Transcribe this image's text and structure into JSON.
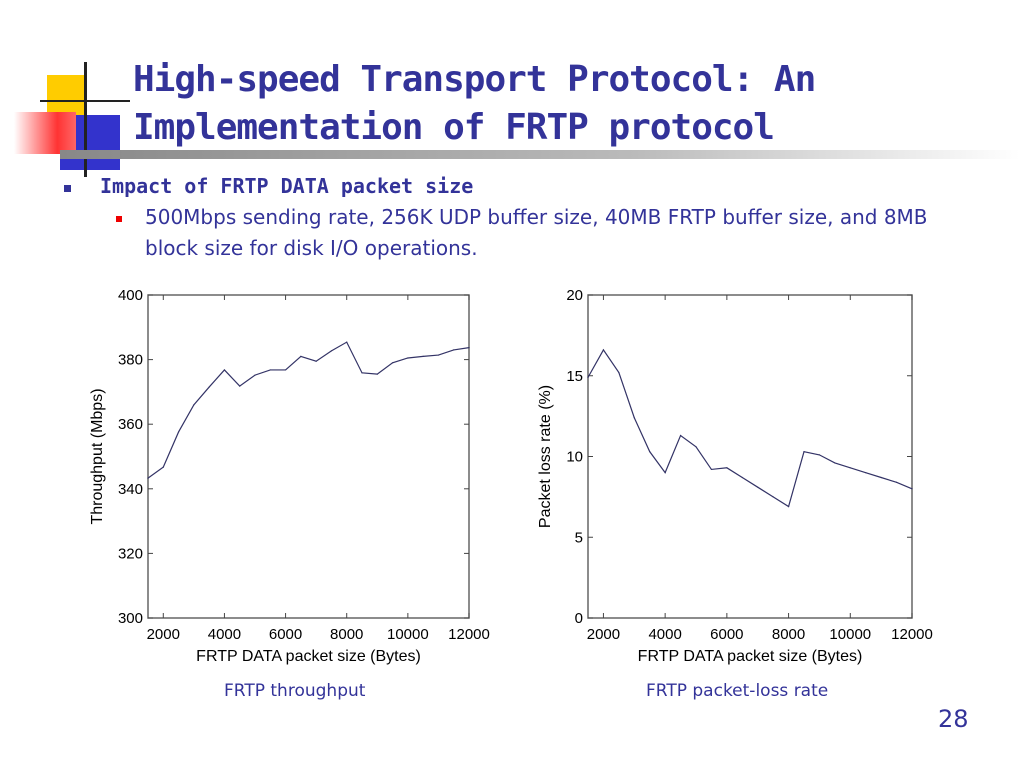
{
  "slide": {
    "title": "High-speed Transport Protocol: An Implementation of FRTP protocol",
    "bullet": "Impact of FRTP DATA packet size",
    "sub_bullet": "500Mbps sending rate, 256K UDP buffer size, 40MB FRTP buffer size, and 8MB block size for disk I/O operations.",
    "caption_left": "FRTP throughput",
    "caption_right": "FRTP packet-loss rate",
    "page_number": "28"
  },
  "chart_data": [
    {
      "type": "line",
      "title": "",
      "xlabel": "FRTP DATA packet size (Bytes)",
      "ylabel": "Throughput (Mbps)",
      "xlim": [
        1500,
        12000
      ],
      "ylim": [
        300,
        400
      ],
      "xticks": [
        2000,
        4000,
        6000,
        8000,
        10000,
        12000
      ],
      "yticks": [
        300,
        320,
        340,
        360,
        380,
        400
      ],
      "color": "#333366",
      "x": [
        1500,
        2000,
        2500,
        3000,
        3500,
        4000,
        4500,
        5000,
        5500,
        6000,
        6500,
        7000,
        7500,
        8000,
        8500,
        9000,
        9500,
        10000,
        10500,
        11000,
        11500,
        12000
      ],
      "y": [
        343.3,
        346.7,
        357.6,
        366,
        371.5,
        376.8,
        371.8,
        375.2,
        376.8,
        376.8,
        381,
        379.5,
        382.7,
        385.4,
        375.9,
        375.5,
        379,
        380.5,
        381,
        381.4,
        383,
        383.7
      ]
    },
    {
      "type": "line",
      "title": "",
      "xlabel": "FRTP DATA packet size (Bytes)",
      "ylabel": "Packet loss rate (%)",
      "xlim": [
        1500,
        12000
      ],
      "ylim": [
        0,
        20
      ],
      "xticks": [
        2000,
        4000,
        6000,
        8000,
        10000,
        12000
      ],
      "yticks": [
        0,
        5,
        10,
        15,
        20
      ],
      "color": "#333366",
      "x": [
        1500,
        2000,
        2500,
        3000,
        3500,
        4000,
        4500,
        5000,
        5500,
        6000,
        6500,
        7000,
        7500,
        8000,
        8500,
        9000,
        9500,
        10000,
        10500,
        11000,
        11500,
        12000
      ],
      "y": [
        14.9,
        16.6,
        15.2,
        12.4,
        10.3,
        9.0,
        11.3,
        10.6,
        9.2,
        9.3,
        8.7,
        8.1,
        7.5,
        6.9,
        10.3,
        10.1,
        9.6,
        9.3,
        9.0,
        8.7,
        8.4,
        8.0
      ]
    }
  ]
}
